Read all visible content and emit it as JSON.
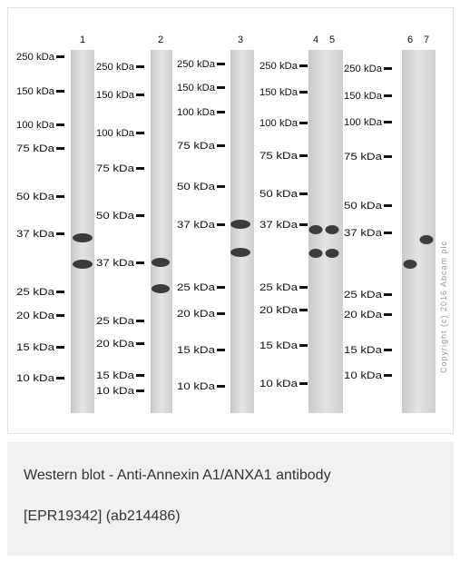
{
  "panels": [
    {
      "lanes": [
        "1"
      ],
      "markers": [
        "250 kDa",
        "150 kDa",
        "100 kDa",
        "75 kDa",
        "50 kDa",
        "37 kDa",
        "25 kDa",
        "20 kDa",
        "15 kDa",
        "10 kDa"
      ]
    },
    {
      "lanes": [
        "2"
      ],
      "markers": [
        "250 kDa",
        "150 kDa",
        "100 kDa",
        "75 kDa",
        "50 kDa",
        "37 kDa",
        "25 kDa",
        "20 kDa",
        "15 kDa",
        "10 kDa"
      ]
    },
    {
      "lanes": [
        "3"
      ],
      "markers": [
        "250 kDa",
        "150 kDa",
        "100 kDa",
        "75 kDa",
        "50 kDa",
        "37 kDa",
        "25 kDa",
        "20 kDa",
        "15 kDa",
        "10 kDa"
      ]
    },
    {
      "lanes": [
        "4",
        "5"
      ],
      "markers": [
        "250 kDa",
        "150 kDa",
        "100 kDa",
        "75 kDa",
        "50 kDa",
        "37 kDa",
        "25 kDa",
        "20 kDa",
        "15 kDa",
        "10 kDa"
      ]
    },
    {
      "lanes": [
        "6",
        "7"
      ],
      "markers": [
        "250 kDa",
        "150 kDa",
        "100 kDa",
        "75 kDa",
        "50 kDa",
        "37 kDa",
        "25 kDa",
        "20 kDa",
        "15 kDa",
        "10 kDa"
      ]
    }
  ],
  "copyright": "Copyright (c) 2016 Abcam plc",
  "caption": {
    "lines": [
      "Western blot - Anti-Annexin A1/ANXA1 antibody",
      "[EPR19342] (ab214486)"
    ]
  }
}
